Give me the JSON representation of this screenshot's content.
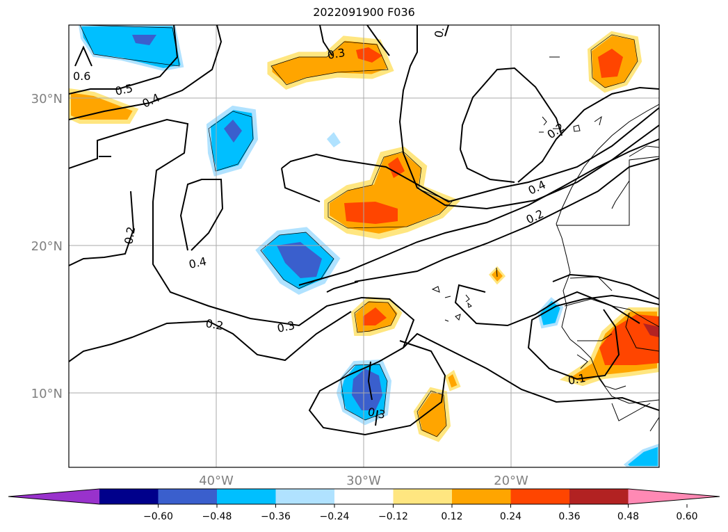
{
  "map": {
    "title": "2022091900 F036",
    "lat_labels": [
      "30°N",
      "20°N",
      "10°N"
    ],
    "lon_labels": [
      "40°W",
      "30°W",
      "20°W"
    ],
    "contour_labels": [
      "0.6",
      "0.5",
      "0.4",
      "0.3",
      "0.",
      "0.2",
      "0.4",
      "0.2",
      "0.4",
      "0.2",
      "0.3",
      "0.2",
      "0.3",
      "0.1"
    ],
    "colorbar": {
      "ticks": [
        "−0.60",
        "−0.48",
        "−0.36",
        "−0.24",
        "−0.12",
        "0.12",
        "0.24",
        "0.36",
        "0.48",
        "0.60"
      ],
      "colors": [
        "#9932cc",
        "#00008b",
        "#3a5fcd",
        "#00bfff",
        "#b0e2ff",
        "#ffffff",
        "#ffe680",
        "#ffa500",
        "#ff4500",
        "#b22222",
        "#ff89b4"
      ]
    }
  }
}
